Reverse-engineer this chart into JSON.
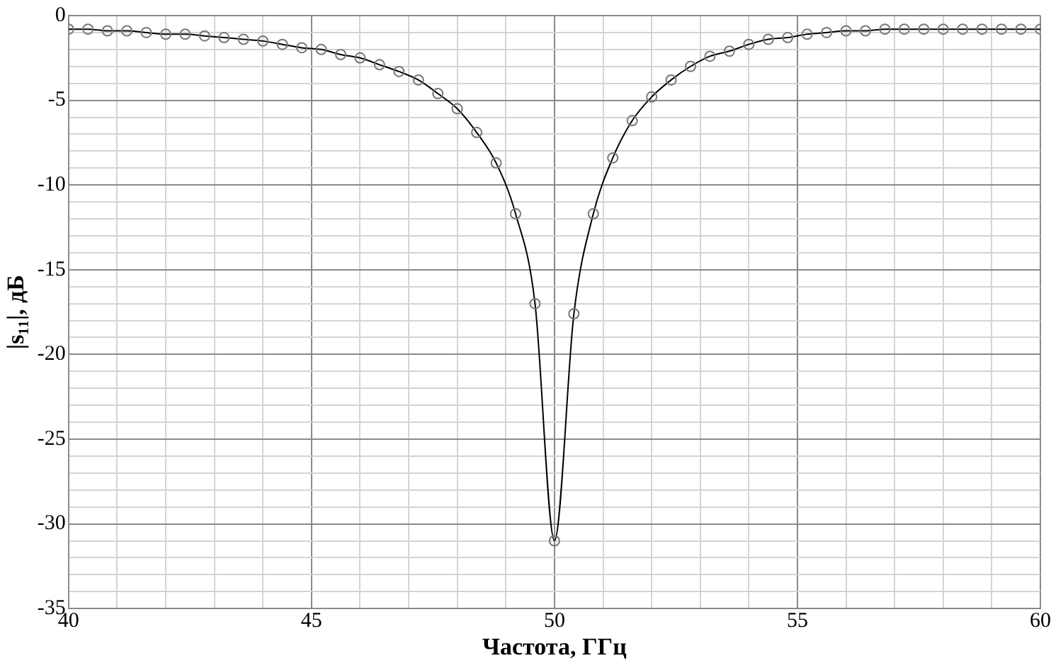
{
  "chart_data": {
    "type": "line",
    "xlabel": "Частота, ГГц",
    "ylabel": "|s₁₁|, дБ",
    "x": [
      40,
      40.4,
      40.8,
      41.2,
      41.6,
      42,
      42.4,
      42.8,
      43.2,
      43.6,
      44,
      44.4,
      44.8,
      45.2,
      45.6,
      46,
      46.4,
      46.8,
      47.2,
      47.6,
      48,
      48.4,
      48.8,
      49.2,
      49.6,
      50,
      50.4,
      50.8,
      51.2,
      51.6,
      52,
      52.4,
      52.8,
      53.2,
      53.6,
      54,
      54.4,
      54.8,
      55.2,
      55.6,
      56,
      56.4,
      56.8,
      57.2,
      57.6,
      58,
      58.4,
      58.8,
      59.2,
      59.6,
      60
    ],
    "series": [
      {
        "color": "#000000",
        "values": [
          -0.8,
          -0.8,
          -0.9,
          -0.9,
          -1.0,
          -1.1,
          -1.1,
          -1.2,
          -1.3,
          -1.4,
          -1.5,
          -1.7,
          -1.9,
          -2.0,
          -2.3,
          -2.5,
          -2.9,
          -3.3,
          -3.8,
          -4.6,
          -5.5,
          -6.9,
          -8.7,
          -11.7,
          -17.0,
          -31.0,
          -17.6,
          -11.7,
          -8.4,
          -6.2,
          -4.8,
          -3.8,
          -3.0,
          -2.4,
          -2.1,
          -1.7,
          -1.4,
          -1.3,
          -1.1,
          -1.0,
          -0.9,
          -0.9,
          -0.8,
          -0.8,
          -0.8,
          -0.8,
          -0.8,
          -0.8,
          -0.8,
          -0.8,
          -0.8
        ]
      }
    ],
    "xlim": [
      40,
      60
    ],
    "ylim": [
      -35,
      0
    ],
    "xticks": [
      40,
      {
        "value": 41,
        "label": null
      },
      {
        "value": 42,
        "label": null
      },
      {
        "value": 43,
        "label": null
      },
      {
        "value": 44,
        "label": null
      },
      45,
      {
        "value": 46,
        "label": null
      },
      {
        "value": 47,
        "label": null
      },
      {
        "value": 48,
        "label": null
      },
      {
        "value": 49,
        "label": null
      },
      50,
      {
        "value": 51,
        "label": null
      },
      {
        "value": 52,
        "label": null
      },
      {
        "value": 53,
        "label": null
      },
      {
        "value": 54,
        "label": null
      },
      55,
      {
        "value": 56,
        "label": null
      },
      {
        "value": 57,
        "label": null
      },
      {
        "value": 58,
        "label": null
      },
      {
        "value": 59,
        "label": null
      },
      60
    ],
    "yticks": [
      -35,
      {
        "value": -34,
        "label": null
      },
      {
        "value": -33,
        "label": null
      },
      {
        "value": -32,
        "label": null
      },
      {
        "value": -31,
        "label": null
      },
      -30,
      {
        "value": -29,
        "label": null
      },
      {
        "value": -28,
        "label": null
      },
      {
        "value": -27,
        "label": null
      },
      {
        "value": -26,
        "label": null
      },
      -25,
      {
        "value": -24,
        "label": null
      },
      {
        "value": -23,
        "label": null
      },
      {
        "value": -22,
        "label": null
      },
      {
        "value": -21,
        "label": null
      },
      -20,
      {
        "value": -19,
        "label": null
      },
      {
        "value": -18,
        "label": null
      },
      {
        "value": -17,
        "label": null
      },
      {
        "value": -16,
        "label": null
      },
      -15,
      {
        "value": -14,
        "label": null
      },
      {
        "value": -13,
        "label": null
      },
      {
        "value": -12,
        "label": null
      },
      {
        "value": -11,
        "label": null
      },
      -10,
      {
        "value": -9,
        "label": null
      },
      {
        "value": -8,
        "label": null
      },
      {
        "value": -7,
        "label": null
      },
      {
        "value": -6,
        "label": null
      },
      -5,
      {
        "value": -4,
        "label": null
      },
      {
        "value": -3,
        "label": null
      },
      {
        "value": -2,
        "label": null
      },
      {
        "value": -1,
        "label": null
      },
      0
    ],
    "grid": true,
    "legend": false,
    "marker": "circle",
    "line_style": "solid"
  }
}
